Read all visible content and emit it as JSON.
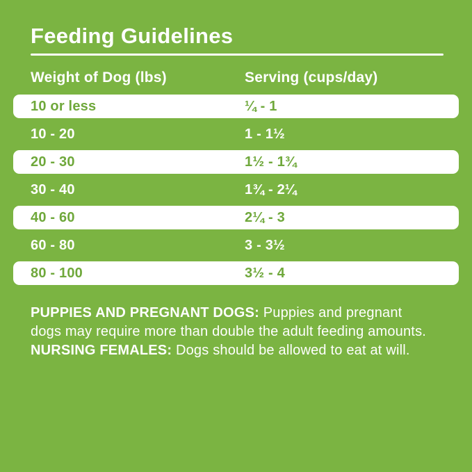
{
  "page": {
    "background_color": "#7BB442",
    "highlight_row_color": "#FFFFFF",
    "text_color_on_green": "#FFFFFF",
    "text_color_on_white": "#6FA83B"
  },
  "title": "Feeding Guidelines",
  "table": {
    "headers": {
      "weight": "Weight of Dog (lbs)",
      "serving": "Serving (cups/day)"
    },
    "rows": [
      {
        "weight": "10 or less",
        "serving": "¼ - 1",
        "highlight": true
      },
      {
        "weight": "10 - 20",
        "serving": "1 - 1½",
        "highlight": false
      },
      {
        "weight": "20 - 30",
        "serving": "1½ - 1¾",
        "highlight": true
      },
      {
        "weight": "30 - 40",
        "serving": "1¾ - 2¼",
        "highlight": false
      },
      {
        "weight": "40 - 60",
        "serving": "2¼ - 3",
        "highlight": true
      },
      {
        "weight": "60 - 80",
        "serving": "3 - 3½",
        "highlight": false
      },
      {
        "weight": "80 - 100",
        "serving": "3½ - 4",
        "highlight": true
      }
    ]
  },
  "note": {
    "segments": [
      {
        "text": "PUPPIES AND PREGNANT DOGS: ",
        "bold": true
      },
      {
        "text": "Puppies and pregnant dogs may require more than double the adult feeding amounts. ",
        "bold": false
      },
      {
        "text": "NURSING FEMALES: ",
        "bold": true
      },
      {
        "text": "Dogs should be allowed to eat at will.",
        "bold": false
      }
    ]
  },
  "chart_data": {
    "type": "table",
    "title": "Feeding Guidelines",
    "columns": [
      "Weight of Dog (lbs)",
      "Serving (cups/day)"
    ],
    "rows": [
      [
        "10 or less",
        "¼ - 1"
      ],
      [
        "10 - 20",
        "1 - 1½"
      ],
      [
        "20 - 30",
        "1½ - 1¾"
      ],
      [
        "30 - 40",
        "1¾ - 2¼"
      ],
      [
        "40 - 60",
        "2¼ - 3"
      ],
      [
        "60 - 80",
        "3 - 3½"
      ],
      [
        "80 - 100",
        "3½ - 4"
      ]
    ],
    "footnote": "PUPPIES AND PREGNANT DOGS: Puppies and pregnant dogs may require more than double the adult feeding amounts. NURSING FEMALES: Dogs should be allowed to eat at will."
  }
}
